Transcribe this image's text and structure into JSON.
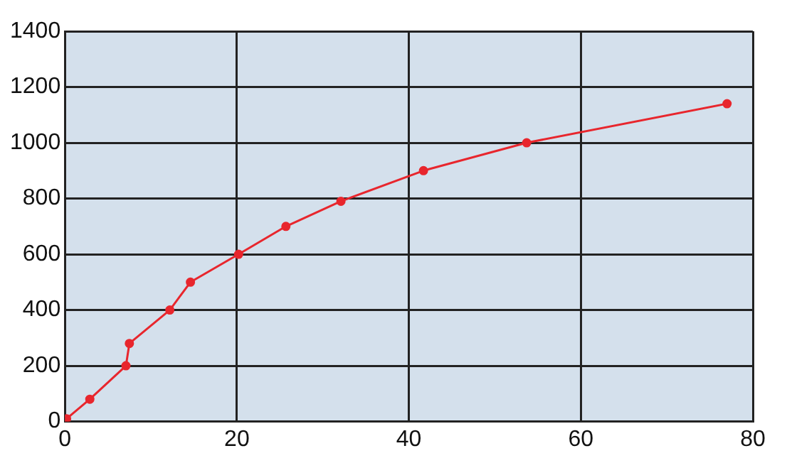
{
  "chart_data": {
    "type": "line",
    "x": [
      0.2,
      2.9,
      7.1,
      7.5,
      12.2,
      14.6,
      20.2,
      25.7,
      32.1,
      41.7,
      53.7,
      77
    ],
    "series": [
      {
        "color": "#e8262d",
        "values": [
          10,
          80,
          200,
          280,
          400,
          500,
          600,
          700,
          790,
          900,
          1000,
          1140
        ]
      }
    ],
    "xlim": [
      0,
      80
    ],
    "xticks": [
      0,
      20,
      40,
      60,
      80
    ],
    "ylim": [
      0,
      1400
    ],
    "yticks": [
      0,
      200,
      400,
      600,
      800,
      1000,
      1200,
      1400
    ],
    "grid": true,
    "marker": "circle",
    "line_style": "solid",
    "legend": false
  }
}
